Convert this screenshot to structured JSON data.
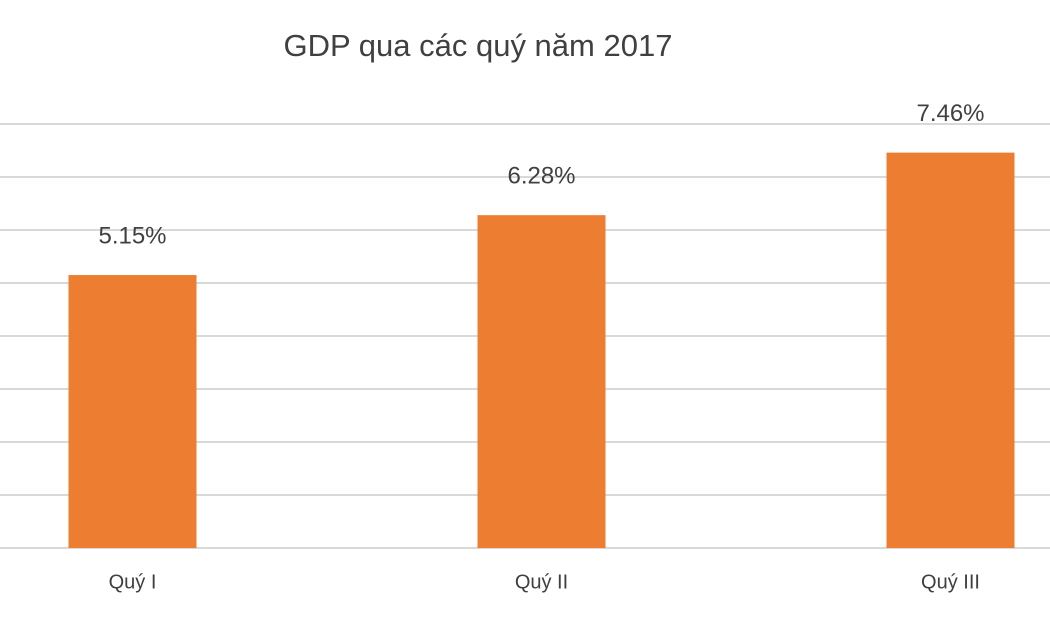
{
  "chart_data": {
    "type": "bar",
    "title": "GDP qua các quý năm 2017",
    "categories": [
      "Quý I",
      "Quý II",
      "Quý III"
    ],
    "values": [
      5.15,
      6.28,
      7.46
    ],
    "value_labels": [
      "5.15%",
      "6.28%",
      "7.46%"
    ],
    "color": "#ed7d31",
    "ylim": [
      0,
      8
    ],
    "yticks": [
      0,
      1,
      2,
      3,
      4,
      5,
      6,
      7,
      8
    ],
    "grid": true
  }
}
